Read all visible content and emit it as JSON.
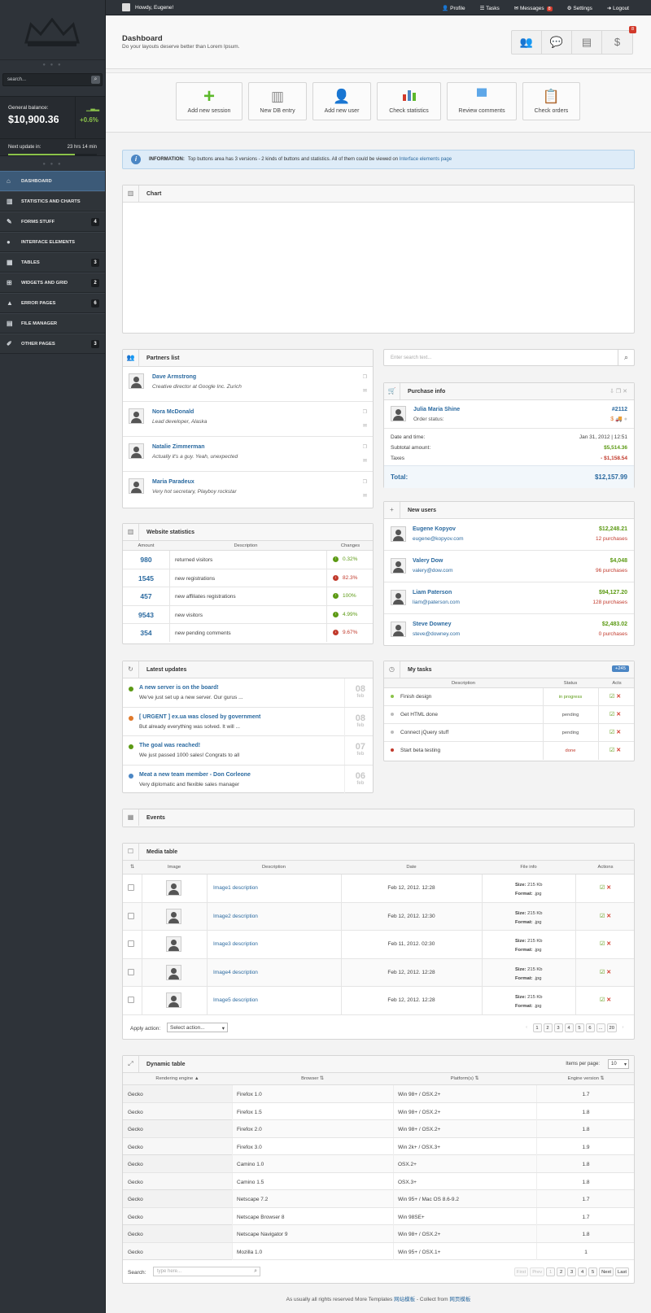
{
  "topbar": {
    "howdy": "Howdy, Eugene!",
    "profile": "Profile",
    "tasks": "Tasks",
    "messages": "Messages",
    "messages_count": "8",
    "settings": "Settings",
    "logout": "Logout"
  },
  "sidebar": {
    "search_placeholder": "search...",
    "balance_label": "General balance:",
    "balance_value": "$10,900.36",
    "balance_change": "+0.6%",
    "next_update_label": "Next update in:",
    "next_update_value": "23 hrs  14 min",
    "next_update_progress": 0.75,
    "items": [
      {
        "label": "DASHBOARD",
        "icon": "home-icon",
        "count": ""
      },
      {
        "label": "STATISTICS AND CHARTS",
        "icon": "chart-icon",
        "count": ""
      },
      {
        "label": "FORMS STUFF",
        "icon": "pencil-icon",
        "count": "4"
      },
      {
        "label": "INTERFACE ELEMENTS",
        "icon": "user-icon",
        "count": ""
      },
      {
        "label": "TABLES",
        "icon": "table-icon",
        "count": "3"
      },
      {
        "label": "WIDGETS AND GRID",
        "icon": "grid-icon",
        "count": "2"
      },
      {
        "label": "ERROR PAGES",
        "icon": "warning-icon",
        "count": "6"
      },
      {
        "label": "FILE MANAGER",
        "icon": "folder-icon",
        "count": ""
      },
      {
        "label": "OTHER PAGES",
        "icon": "pages-icon",
        "count": "3"
      }
    ]
  },
  "header": {
    "title": "Dashboard",
    "subtitle": "Do your layouts deserve better than Lorem Ipsum.",
    "badge": "8"
  },
  "big_buttons": [
    "Add new session",
    "New DB entry",
    "Add new user",
    "Check statistics",
    "Review comments",
    "Check orders"
  ],
  "info": {
    "label": "INFORMATION:",
    "text": "Top buttons area has 3 versions - 2 kinds of buttons and statistics. All of them could be viewed on",
    "link": "Interface elements page"
  },
  "chart_title": "Chart",
  "partners": {
    "title": "Partners list",
    "items": [
      {
        "name": "Dave Armstrong",
        "desc": "Creative director at Google Inc. Zurich"
      },
      {
        "name": "Nora McDonald",
        "desc": "Lead developer, Alaska"
      },
      {
        "name": "Natalie Zimmerman",
        "desc": "Actually it's a guy. Yeah, unexpected"
      },
      {
        "name": "Maria Paradeux",
        "desc": "Very hot secretary, Playboy rockstar"
      }
    ]
  },
  "search_text_placeholder": "Enter search text...",
  "purchase": {
    "title": "Purchase info",
    "name": "Julia Maria Shine",
    "order_no": "#2112",
    "order_status_label": "Order status:",
    "date_label": "Date and time:",
    "date_value": "Jan 31, 2012 | 12:51",
    "subtotal_label": "Subtotal amount:",
    "subtotal_value": "$5,514.36",
    "taxes_label": "Taxes",
    "taxes_value": "- $1,158.54",
    "total_label": "Total:",
    "total_value": "$12,157.99"
  },
  "stats": {
    "title": "Website statistics",
    "headers": [
      "Amount",
      "Description",
      "Changes"
    ],
    "rows": [
      {
        "amount": "980",
        "desc": "returned visitors",
        "change": "0.32%",
        "dir": "up"
      },
      {
        "amount": "1545",
        "desc": "new registrations",
        "change": "82.3%",
        "dir": "down"
      },
      {
        "amount": "457",
        "desc": "new affiliates registrations",
        "change": "100%",
        "dir": "up"
      },
      {
        "amount": "9543",
        "desc": "new visitors",
        "change": "4.99%",
        "dir": "up"
      },
      {
        "amount": "354",
        "desc": "new pending comments",
        "change": "9.67%",
        "dir": "down"
      }
    ]
  },
  "new_users": {
    "title": "New users",
    "items": [
      {
        "name": "Eugene Kopyov",
        "email": "eugene@kopyov.com",
        "amount": "$12,248.21",
        "purchases": "12 purchases"
      },
      {
        "name": "Valery Dow",
        "email": "valery@dow.com",
        "amount": "$4,048",
        "purchases": "96 purchases"
      },
      {
        "name": "Liam Paterson",
        "email": "liam@paterson.com",
        "amount": "$94,127.20",
        "purchases": "128 purchases"
      },
      {
        "name": "Steve Downey",
        "email": "steve@downey.com",
        "amount": "$2,483.02",
        "purchases": "0 purchases"
      }
    ]
  },
  "updates": {
    "title": "Latest updates",
    "items": [
      {
        "title": "A new server is on the board!",
        "text": "We've just set up a new server. Our gurus ...",
        "day": "08",
        "month": "feb",
        "color": "#5c9a14"
      },
      {
        "title": "[ URGENT ] ex.ua was closed by government",
        "text": "But already everything was solved. It will ...",
        "day": "08",
        "month": "feb",
        "color": "#e0792b"
      },
      {
        "title": "The goal was reached!",
        "text": "We just passed 1000 sales! Congrats to all",
        "day": "07",
        "month": "feb",
        "color": "#5c9a14"
      },
      {
        "title": "Meat a new team member - Don Corleone",
        "text": "Very diplomatic and flexible sales manager",
        "day": "06",
        "month": "feb",
        "color": "#4b86c4"
      }
    ]
  },
  "tasks": {
    "title": "My tasks",
    "badge": "+245",
    "headers": [
      "Description",
      "Status",
      "Acts"
    ],
    "rows": [
      {
        "desc": "Finish design",
        "status": "in progress",
        "color": "#5c9a14",
        "dot": "#8bc34a"
      },
      {
        "desc": "Get HTML done",
        "status": "pending",
        "color": "#555",
        "dot": "#bbb"
      },
      {
        "desc": "Connect jQuery stuff",
        "status": "pending",
        "color": "#555",
        "dot": "#bbb"
      },
      {
        "desc": "Start beta testing",
        "status": "done",
        "color": "#c1392b",
        "dot": "#c1392b"
      }
    ]
  },
  "events_title": "Events",
  "media": {
    "title": "Media table",
    "headers": [
      "Image",
      "Description",
      "Date",
      "File info",
      "Actions"
    ],
    "rows": [
      {
        "desc": "Image1 description",
        "date": "Feb 12, 2012. 12:28",
        "size": "215 Kb",
        "format": ".jpg"
      },
      {
        "desc": "Image2 description",
        "date": "Feb 12, 2012. 12:30",
        "size": "215 Kb",
        "format": ".jpg"
      },
      {
        "desc": "Image3 description",
        "date": "Feb 11, 2012. 02:30",
        "size": "215 Kb",
        "format": ".jpg"
      },
      {
        "desc": "Image4 description",
        "date": "Feb 12, 2012. 12:28",
        "size": "215 Kb",
        "format": ".jpg"
      },
      {
        "desc": "Image5 description",
        "date": "Feb 12, 2012. 12:28",
        "size": "215 Kb",
        "format": ".jpg"
      }
    ],
    "size_label": "Size:",
    "format_label": "Format:",
    "apply_label": "Apply action:",
    "select_value": "Select action...",
    "pages": [
      "1",
      "2",
      "3",
      "4",
      "5",
      "6",
      "...",
      "20"
    ]
  },
  "dynamic": {
    "title": "Dynamic table",
    "per_page_label": "Items per page:",
    "per_page_value": "10",
    "headers": [
      "Rendering engine",
      "Browser",
      "Platform(s)",
      "Engine version"
    ],
    "rows": [
      [
        "Gecko",
        "Firefox 1.0",
        "Win 98+ / OSX.2+",
        "1.7"
      ],
      [
        "Gecko",
        "Firefox 1.5",
        "Win 98+ / OSX.2+",
        "1.8"
      ],
      [
        "Gecko",
        "Firefox 2.0",
        "Win 98+ / OSX.2+",
        "1.8"
      ],
      [
        "Gecko",
        "Firefox 3.0",
        "Win 2k+ / OSX.3+",
        "1.9"
      ],
      [
        "Gecko",
        "Camino 1.0",
        "OSX.2+",
        "1.8"
      ],
      [
        "Gecko",
        "Camino 1.5",
        "OSX.3+",
        "1.8"
      ],
      [
        "Gecko",
        "Netscape 7.2",
        "Win 95+ / Mac OS 8.6-9.2",
        "1.7"
      ],
      [
        "Gecko",
        "Netscape Browser 8",
        "Win 98SE+",
        "1.7"
      ],
      [
        "Gecko",
        "Netscape Navigator 9",
        "Win 98+ / OSX.2+",
        "1.8"
      ],
      [
        "Gecko",
        "Mozilla 1.0",
        "Win 95+ / OSX.1+",
        "1"
      ]
    ],
    "search_label": "Search:",
    "search_placeholder": "type here...",
    "pager": [
      "First",
      "Prev",
      "1",
      "2",
      "3",
      "4",
      "5",
      "Next",
      "Last"
    ]
  },
  "footer": {
    "text": "As usually all rights reserved More Templates",
    "link1": "网站模板",
    "mid": " - Collect from ",
    "link2": "网页模板"
  }
}
